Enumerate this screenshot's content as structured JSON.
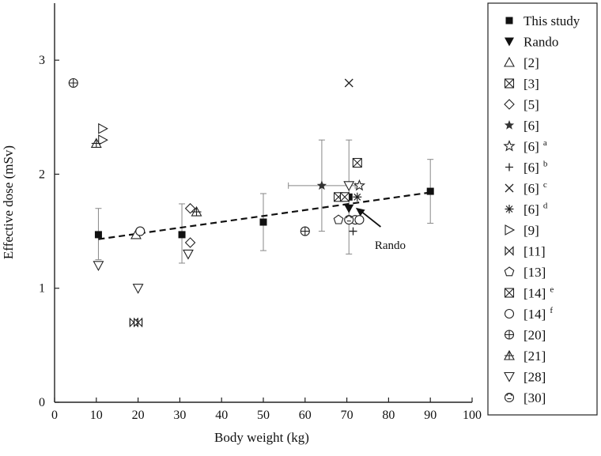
{
  "chart_data": {
    "type": "scatter",
    "title": "",
    "xlabel": "Body weight (kg)",
    "ylabel": "Effective dose (mSv)",
    "xlim": [
      0,
      100
    ],
    "ylim": [
      0,
      3.5
    ],
    "xticks": [
      0,
      10,
      20,
      30,
      40,
      50,
      60,
      70,
      80,
      90,
      100
    ],
    "yticks": [
      0,
      1,
      2,
      3
    ],
    "legend_position": "right",
    "trendline": {
      "style": "dashed",
      "from": [
        10.5,
        1.43
      ],
      "to": [
        90,
        1.84
      ]
    },
    "annotations": [
      {
        "text": "Rando",
        "x": 80,
        "y": 1.4,
        "arrow_to": [
          71,
          1.72
        ]
      }
    ],
    "series": [
      {
        "name": "This study",
        "marker": "square-filled",
        "points": [
          {
            "x": 10.5,
            "y": 1.47,
            "ylo": 1.25,
            "yhi": 1.7
          },
          {
            "x": 30.5,
            "y": 1.47,
            "ylo": 1.22,
            "yhi": 1.74
          },
          {
            "x": 50,
            "y": 1.58,
            "ylo": 1.33,
            "yhi": 1.83
          },
          {
            "x": 70.5,
            "y": 1.8,
            "ylo": 1.3,
            "yhi": 2.3
          },
          {
            "x": 90,
            "y": 1.85,
            "ylo": 1.57,
            "yhi": 2.13
          }
        ]
      },
      {
        "name": "Rando",
        "marker": "triangle-down-filled",
        "points": [
          {
            "x": 70.5,
            "y": 1.7
          }
        ]
      },
      {
        "name": "[2]",
        "marker": "triangle-up",
        "points": [
          {
            "x": 19.5,
            "y": 1.47
          }
        ]
      },
      {
        "name": "[3]",
        "marker": "square-x",
        "points": [
          {
            "x": 68,
            "y": 1.8
          },
          {
            "x": 69.5,
            "y": 1.8
          }
        ]
      },
      {
        "name": "[5]",
        "marker": "diamond",
        "points": [
          {
            "x": 32.5,
            "y": 1.7
          },
          {
            "x": 32.5,
            "y": 1.4
          }
        ]
      },
      {
        "name": "[6]",
        "marker": "star-filled",
        "points": [
          {
            "x": 64,
            "y": 1.9,
            "xlo": 56,
            "xhi": 72,
            "ylo": 1.5,
            "yhi": 2.3
          }
        ]
      },
      {
        "name": "[6] a",
        "label_main": "[6]",
        "label_sup": "a",
        "marker": "star",
        "points": [
          {
            "x": 73,
            "y": 1.9
          }
        ]
      },
      {
        "name": "[6] b",
        "label_main": "[6]",
        "label_sup": "b",
        "marker": "plus",
        "points": [
          {
            "x": 71.5,
            "y": 1.5
          }
        ]
      },
      {
        "name": "[6] c",
        "label_main": "[6]",
        "label_sup": "c",
        "marker": "x",
        "points": [
          {
            "x": 70.5,
            "y": 2.8
          }
        ]
      },
      {
        "name": "[6] d",
        "label_main": "[6]",
        "label_sup": "d",
        "marker": "asterisk",
        "points": [
          {
            "x": 72.5,
            "y": 1.8
          }
        ]
      },
      {
        "name": "[9]",
        "marker": "triangle-right",
        "points": [
          {
            "x": 11.5,
            "y": 2.4
          },
          {
            "x": 11.5,
            "y": 2.3
          }
        ]
      },
      {
        "name": "[11]",
        "marker": "bowtie",
        "points": [
          {
            "x": 19,
            "y": 0.7
          },
          {
            "x": 20,
            "y": 0.7
          }
        ]
      },
      {
        "name": "[13]",
        "marker": "pentagon",
        "points": [
          {
            "x": 68,
            "y": 1.6
          }
        ]
      },
      {
        "name": "[14] e",
        "label_main": "[14]",
        "label_sup": "e",
        "marker": "square-x",
        "points": [
          {
            "x": 72.5,
            "y": 2.1
          }
        ]
      },
      {
        "name": "[14] f",
        "label_main": "[14]",
        "label_sup": "f",
        "marker": "circle",
        "points": [
          {
            "x": 20.5,
            "y": 1.5
          },
          {
            "x": 72,
            "y": 1.6
          },
          {
            "x": 73,
            "y": 1.6
          }
        ]
      },
      {
        "name": "[20]",
        "marker": "circle-plus",
        "points": [
          {
            "x": 4.5,
            "y": 2.8
          },
          {
            "x": 60,
            "y": 1.5
          }
        ]
      },
      {
        "name": "[21]",
        "marker": "triangle-up-plus",
        "points": [
          {
            "x": 10,
            "y": 2.27
          },
          {
            "x": 34,
            "y": 1.67
          }
        ]
      },
      {
        "name": "[28]",
        "marker": "triangle-down",
        "points": [
          {
            "x": 10.5,
            "y": 1.2
          },
          {
            "x": 20,
            "y": 1.0
          },
          {
            "x": 32,
            "y": 1.3
          },
          {
            "x": 70.5,
            "y": 1.9
          }
        ]
      },
      {
        "name": "[30]",
        "marker": "circle-half",
        "points": [
          {
            "x": 70.5,
            "y": 1.6
          }
        ]
      }
    ]
  }
}
